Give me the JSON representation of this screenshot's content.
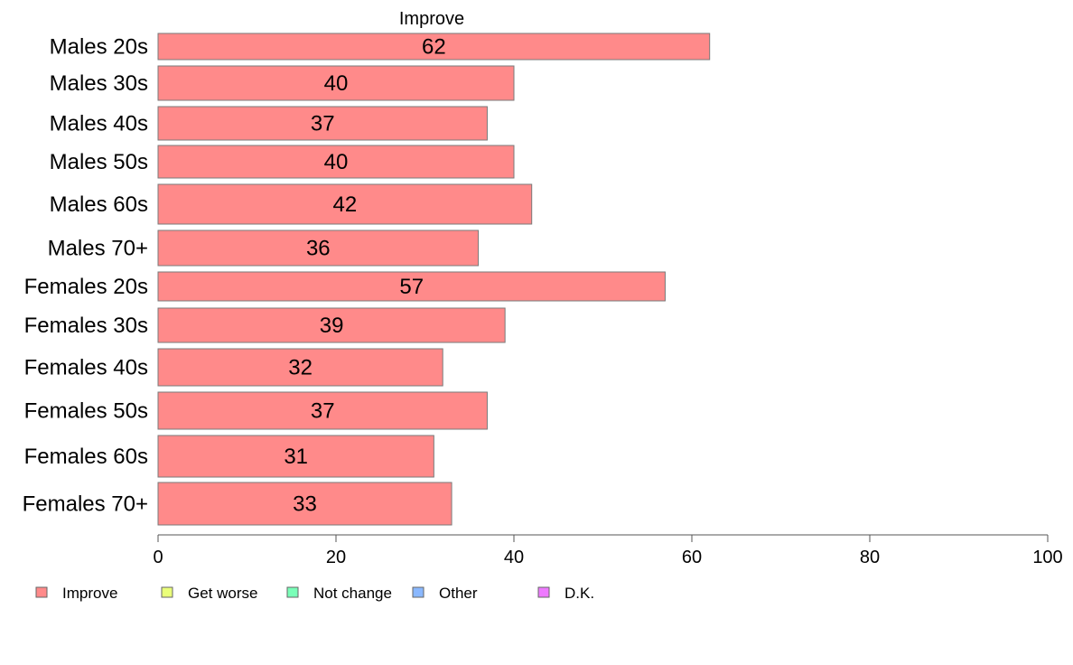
{
  "chart_data": {
    "type": "bar",
    "orientation": "horizontal",
    "title": "Improve",
    "categories": [
      "Males 20s",
      "Males 30s",
      "Males 40s",
      "Males 50s",
      "Males 60s",
      "Males 70+",
      "Females 20s",
      "Females 30s",
      "Females 40s",
      "Females 50s",
      "Females 60s",
      "Females 70+"
    ],
    "series": [
      {
        "name": "Improve",
        "values": [
          62,
          40,
          37,
          40,
          42,
          36,
          57,
          39,
          32,
          37,
          31,
          33
        ],
        "color": "#ff8a8a"
      }
    ],
    "value_labels": [
      "62",
      "40",
      "37",
      "40",
      "42",
      "36",
      "57",
      "39",
      "32",
      "37",
      "31",
      "33"
    ],
    "xlim": [
      0,
      100
    ],
    "xticks": [
      0,
      20,
      40,
      60,
      80,
      100
    ],
    "xtick_labels": [
      "0",
      "20",
      "40",
      "60",
      "80",
      "100"
    ],
    "xlabel": "",
    "ylabel": "",
    "grid": false,
    "legend": {
      "placement": "bottom",
      "entries": [
        {
          "label": "Improve",
          "color": "#ff8a8a"
        },
        {
          "label": "Get worse",
          "color": "#eaff7a"
        },
        {
          "label": "Not change",
          "color": "#7affb8"
        },
        {
          "label": "Other",
          "color": "#8ab8ff"
        },
        {
          "label": "D.K.",
          "color": "#ee7aff"
        }
      ]
    }
  }
}
